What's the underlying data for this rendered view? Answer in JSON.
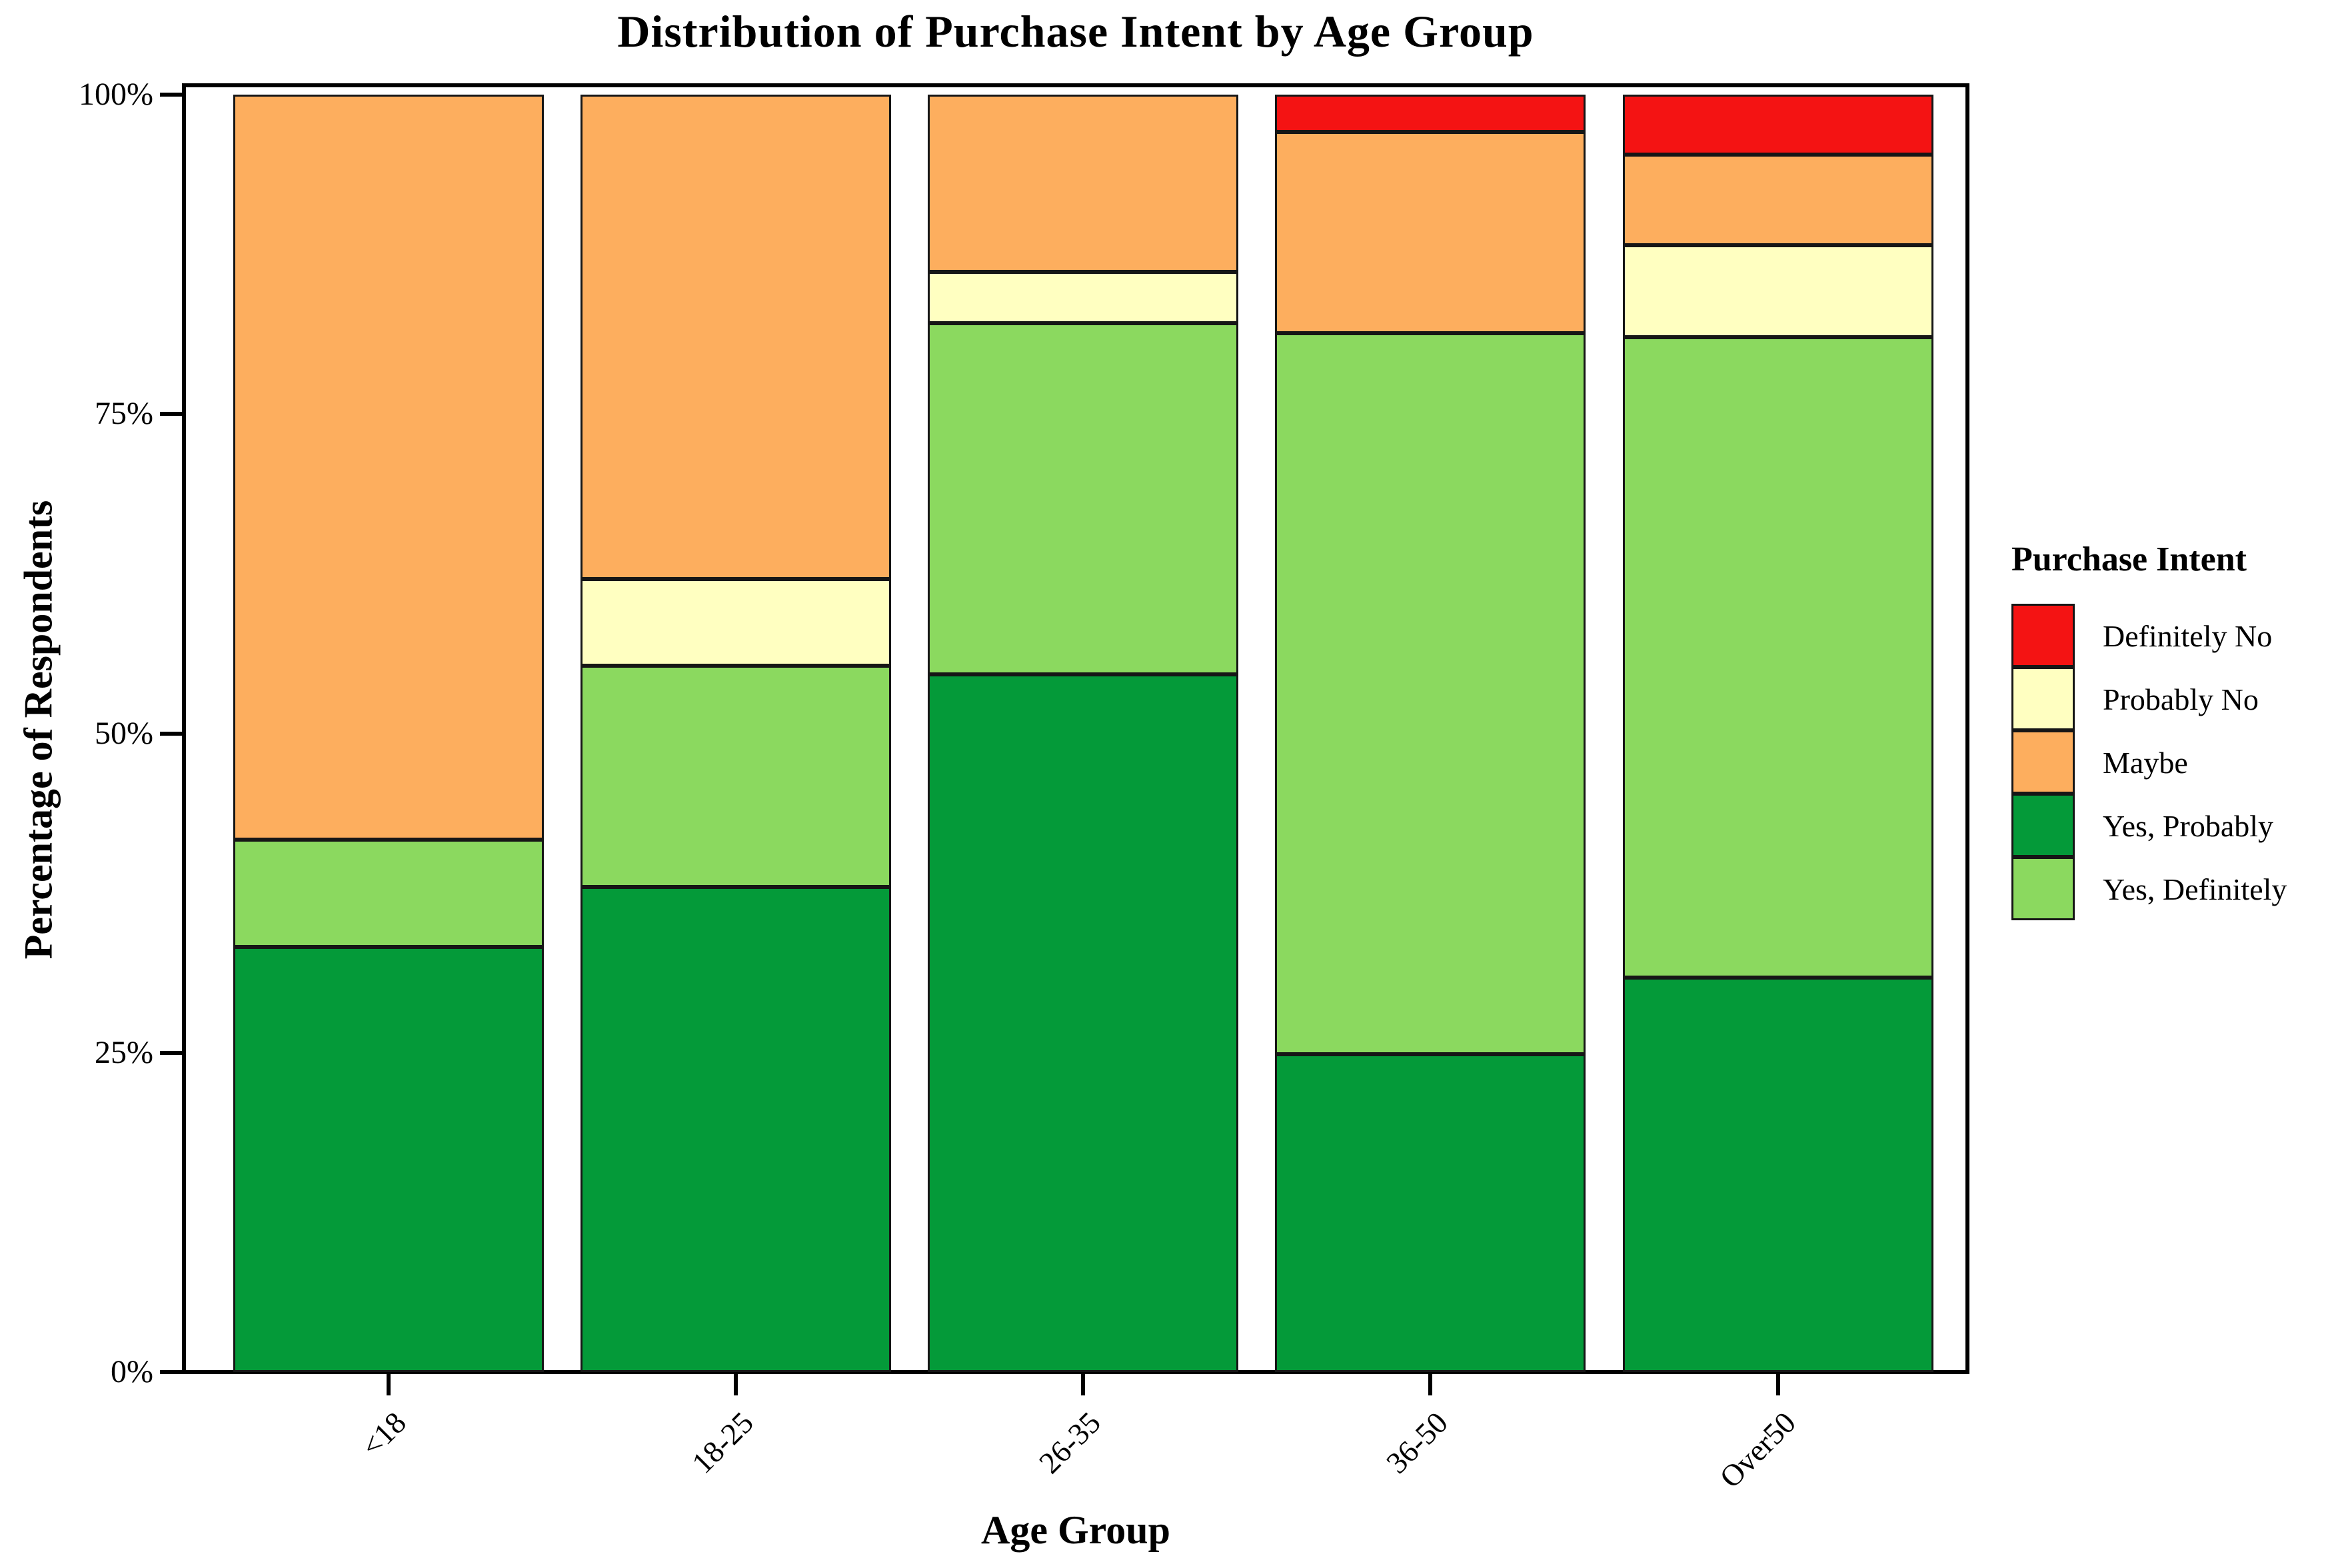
{
  "title": "Distribution of Purchase Intent by Age Group",
  "x_axis": {
    "label": "Age Group"
  },
  "y_axis": {
    "label": "Percentage of Respondents",
    "tick_values": [
      0,
      25,
      50,
      75,
      100
    ],
    "tick_suffix": "%"
  },
  "legend": {
    "title": "Purchase Intent",
    "entries": [
      {
        "label": "Definitely No",
        "color": "#f41313"
      },
      {
        "label": "Probably No",
        "color": "#ffffc1"
      },
      {
        "label": "Maybe",
        "color": "#fdae5e"
      },
      {
        "label": "Yes, Probably",
        "color": "#049a39"
      },
      {
        "label": "Yes, Definitely",
        "color": "#8bd95f"
      }
    ]
  },
  "chart_data": {
    "type": "bar",
    "subtype": "stacked-100-percent",
    "title": "Distribution of Purchase Intent by Age Group",
    "xlabel": "Age Group",
    "ylabel": "Percentage of Respondents",
    "ylim": [
      0,
      100
    ],
    "grid": false,
    "legend_position": "right",
    "categories": [
      "<18",
      "18-25",
      "26-35",
      "36-50",
      "Over50"
    ],
    "stack_order_bottom_to_top": [
      "Yes, Probably",
      "Yes, Definitely",
      "Probably No",
      "Maybe",
      "Definitely No"
    ],
    "series": [
      {
        "name": "Yes, Probably",
        "color": "#049a39",
        "values": [
          33.3,
          38.0,
          54.6,
          24.9,
          30.9
        ]
      },
      {
        "name": "Yes, Definitely",
        "color": "#8bd95f",
        "values": [
          8.4,
          17.3,
          27.5,
          56.4,
          50.1
        ]
      },
      {
        "name": "Probably No",
        "color": "#ffffc1",
        "values": [
          0.0,
          6.8,
          4.0,
          0.0,
          7.2
        ]
      },
      {
        "name": "Maybe",
        "color": "#fdae5e",
        "values": [
          58.3,
          37.9,
          13.9,
          15.8,
          7.1
        ]
      },
      {
        "name": "Definitely No",
        "color": "#f41313",
        "values": [
          0.0,
          0.0,
          0.0,
          2.9,
          4.7
        ]
      }
    ]
  }
}
